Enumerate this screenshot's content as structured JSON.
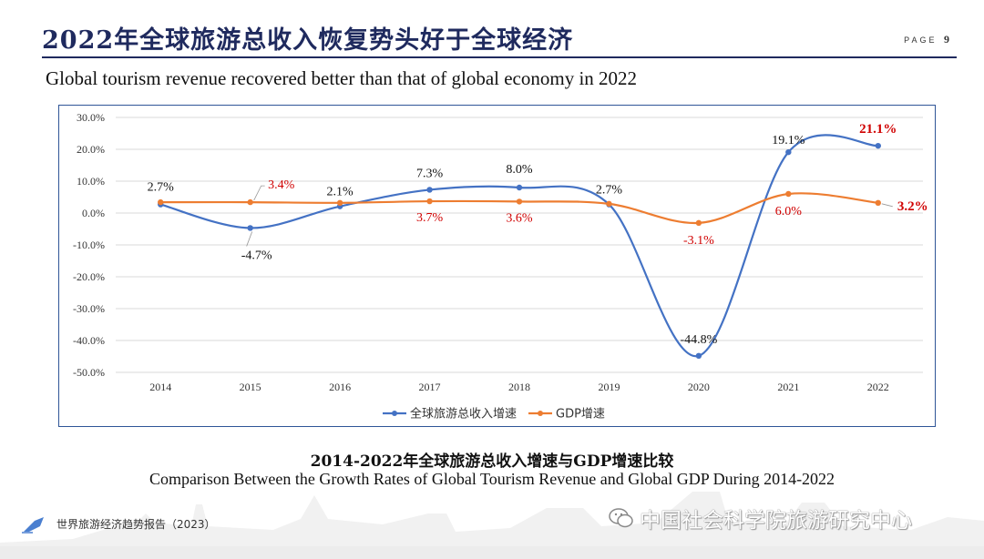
{
  "header": {
    "title": "2022年全球旅游总收入恢复势头好于全球经济",
    "page_word": "PAGE",
    "page_number": "9"
  },
  "subtitle": "Global tourism revenue recovered better than that of global economy in 2022",
  "chart_data": {
    "type": "line",
    "categories": [
      "2014",
      "2015",
      "2016",
      "2017",
      "2018",
      "2019",
      "2020",
      "2021",
      "2022"
    ],
    "ylim": [
      -50,
      30
    ],
    "yticks": [
      30,
      20,
      10,
      0,
      -10,
      -20,
      -30,
      -40,
      -50
    ],
    "ytick_labels": [
      "30.0%",
      "20.0%",
      "10.0%",
      "0.0%",
      "-10.0%",
      "-20.0%",
      "-30.0%",
      "-40.0%",
      "-50.0%"
    ],
    "legend_position": "bottom",
    "series": [
      {
        "name": "全球旅游总收入增速",
        "color": "#4472c4",
        "values": [
          2.7,
          -4.7,
          2.1,
          7.3,
          8.0,
          2.7,
          -44.8,
          19.1,
          21.1
        ],
        "labels": [
          "2.7%",
          "-4.7%",
          "2.1%",
          "7.3%",
          "8.0%",
          "2.7%",
          "-44.8%",
          "19.1%",
          "21.1%"
        ]
      },
      {
        "name": "GDP增速",
        "color": "#ed7d31",
        "values": [
          3.4,
          3.4,
          3.2,
          3.7,
          3.6,
          2.9,
          -3.1,
          6.0,
          3.2
        ],
        "labels": [
          "",
          "3.4%",
          "",
          "3.7%",
          "3.6%",
          "",
          "-3.1%",
          "6.0%",
          "3.2%"
        ]
      }
    ]
  },
  "caption": {
    "cn": "2014-2022年全球旅游总收入增速与GDP增速比较",
    "en": "Comparison Between the Growth Rates of Global Tourism Revenue and Global GDP During 2014-2022"
  },
  "footer": {
    "report": "世界旅游经济趋势报告（2023）",
    "watermark": "中国社会科学院旅游研究中心",
    "logo_icon": "pen-nib-icon",
    "watermark_icon": "wechat-icon"
  },
  "colors": {
    "navy": "#1f2a5e",
    "blue": "#4472c4",
    "orange": "#ed7d31",
    "label_red": "#d00000"
  }
}
